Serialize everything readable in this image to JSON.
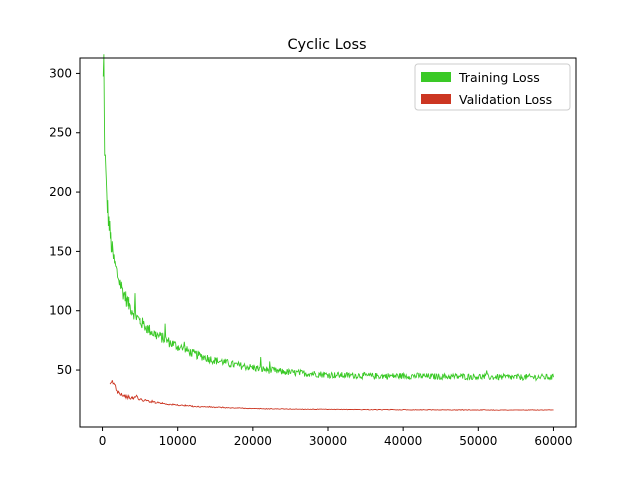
{
  "chart_data": {
    "type": "line",
    "title": "Cyclic Loss",
    "xlabel": "",
    "ylabel": "",
    "xlim": [
      -3000,
      63000
    ],
    "ylim": [
      2,
      313
    ],
    "xticks": [
      0,
      10000,
      20000,
      30000,
      40000,
      50000,
      60000
    ],
    "xtick_labels": [
      "0",
      "10000",
      "20000",
      "30000",
      "40000",
      "50000",
      "60000"
    ],
    "yticks": [
      50,
      100,
      150,
      200,
      250,
      300
    ],
    "ytick_labels": [
      "50",
      "100",
      "150",
      "200",
      "250",
      "300"
    ],
    "grid": false,
    "legend_position": "top-right",
    "series": [
      {
        "name": "Training Loss",
        "color": "#3ac926",
        "x": [
          100,
          300,
          500,
          700,
          900,
          1100,
          1300,
          1600,
          2000,
          2500,
          3000,
          3500,
          4000,
          4500,
          5000,
          6000,
          7000,
          8000,
          9000,
          10000,
          11000,
          12000,
          13000,
          14000,
          15000,
          16000,
          17000,
          18000,
          19000,
          20000,
          22000,
          24000,
          26000,
          28000,
          30000,
          32000,
          34000,
          36000,
          38000,
          40000,
          42000,
          44000,
          46000,
          48000,
          50000,
          52000,
          54000,
          56000,
          58000,
          60000
        ],
        "y": [
          292,
          240,
          205,
          185,
          172,
          160,
          150,
          140,
          130,
          120,
          112,
          105,
          100,
          95,
          91,
          85,
          80,
          77,
          73,
          70,
          67,
          64,
          62,
          60,
          58,
          57,
          55,
          54,
          53,
          52,
          50,
          48.5,
          47.5,
          47,
          46,
          45.5,
          45.5,
          45,
          45,
          45,
          45,
          44.5,
          44.5,
          44.5,
          44.5,
          44,
          44,
          44,
          44,
          44
        ]
      },
      {
        "name": "Validation Loss",
        "color": "#cc3622",
        "x": [
          1000,
          1300,
          1600,
          2000,
          2500,
          3000,
          3500,
          4000,
          4500,
          5000,
          6000,
          7000,
          8000,
          9000,
          10000,
          11000,
          12000,
          13000,
          14000,
          15000,
          16000,
          17000,
          18000,
          19000,
          20000,
          22000,
          24000,
          26000,
          28000,
          30000,
          32000,
          34000,
          36000,
          38000,
          40000,
          42000,
          44000,
          46000,
          48000,
          50000,
          52000,
          54000,
          56000,
          58000,
          60000
        ],
        "y": [
          36,
          40,
          38,
          32,
          30,
          28,
          27,
          26,
          28,
          25,
          24,
          23,
          22,
          21,
          20.5,
          20,
          19.5,
          19,
          19,
          18.5,
          18.5,
          18,
          18,
          17.8,
          17.5,
          17.3,
          17.2,
          17,
          17,
          16.8,
          16.8,
          16.7,
          16.6,
          16.6,
          16.5,
          16.5,
          16.5,
          16.4,
          16.4,
          16.4,
          16.3,
          16.3,
          16.3,
          16.3,
          16.3
        ]
      }
    ]
  }
}
